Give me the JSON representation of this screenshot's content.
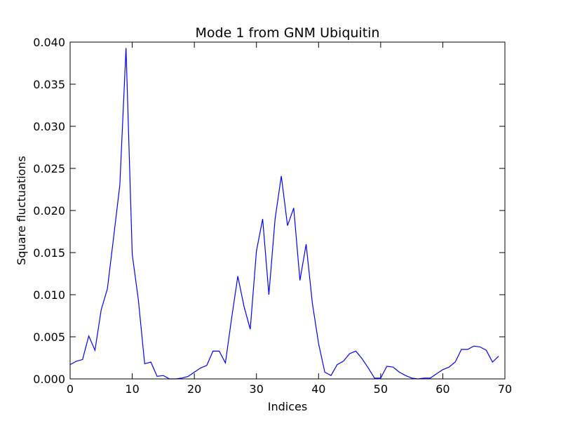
{
  "chart_data": {
    "type": "line",
    "title": "Mode 1 from GNM Ubiquitin",
    "xlabel": "Indices",
    "ylabel": "Square fluctuations",
    "xlim": [
      0,
      70
    ],
    "ylim": [
      0,
      0.04
    ],
    "xticks": [
      0,
      10,
      20,
      30,
      40,
      50,
      60,
      70
    ],
    "xtick_labels": [
      "0",
      "10",
      "20",
      "30",
      "40",
      "50",
      "60",
      "70"
    ],
    "yticks": [
      0,
      0.005,
      0.01,
      0.015,
      0.02,
      0.025,
      0.03,
      0.035,
      0.04
    ],
    "ytick_labels": [
      "0.000",
      "0.005",
      "0.010",
      "0.015",
      "0.020",
      "0.025",
      "0.030",
      "0.035",
      "0.040"
    ],
    "grid": false,
    "line_color": "#0000ff",
    "series": [
      {
        "x": [
          0,
          1,
          2,
          3,
          4,
          5,
          6,
          7,
          8,
          9,
          10,
          11,
          12,
          13,
          14,
          15,
          16,
          17,
          18,
          19,
          20,
          21,
          22,
          23,
          24,
          25,
          26,
          27,
          28,
          29,
          30,
          31,
          32,
          33,
          34,
          35,
          36,
          37,
          38,
          39,
          40,
          41,
          42,
          43,
          44,
          45,
          46,
          47,
          48,
          49,
          50,
          51,
          52,
          53,
          54,
          55,
          56,
          57,
          58,
          59,
          60,
          61,
          62,
          63,
          64,
          65,
          66,
          67,
          68,
          69
        ],
        "values": [
          0.0017,
          0.0021,
          0.0023,
          0.0051,
          0.0034,
          0.0082,
          0.0107,
          0.0168,
          0.023,
          0.0393,
          0.0148,
          0.0093,
          0.0018,
          0.002,
          0.0003,
          0.0004,
          0.0,
          0.0,
          0.0001,
          0.0003,
          0.0008,
          0.0013,
          0.0016,
          0.0033,
          0.0033,
          0.0019,
          0.0072,
          0.0122,
          0.0086,
          0.0059,
          0.0152,
          0.019,
          0.01,
          0.019,
          0.0241,
          0.0182,
          0.0203,
          0.0117,
          0.016,
          0.009,
          0.0042,
          0.0008,
          0.0004,
          0.0017,
          0.0021,
          0.003,
          0.0033,
          0.0024,
          0.0013,
          0.0001,
          0.0001,
          0.0015,
          0.0014,
          0.0008,
          0.0004,
          0.0001,
          0.0,
          0.0001,
          0.0001,
          0.0006,
          0.0011,
          0.0014,
          0.002,
          0.0035,
          0.0035,
          0.0039,
          0.0038,
          0.0034,
          0.002,
          0.0027
        ]
      }
    ]
  }
}
